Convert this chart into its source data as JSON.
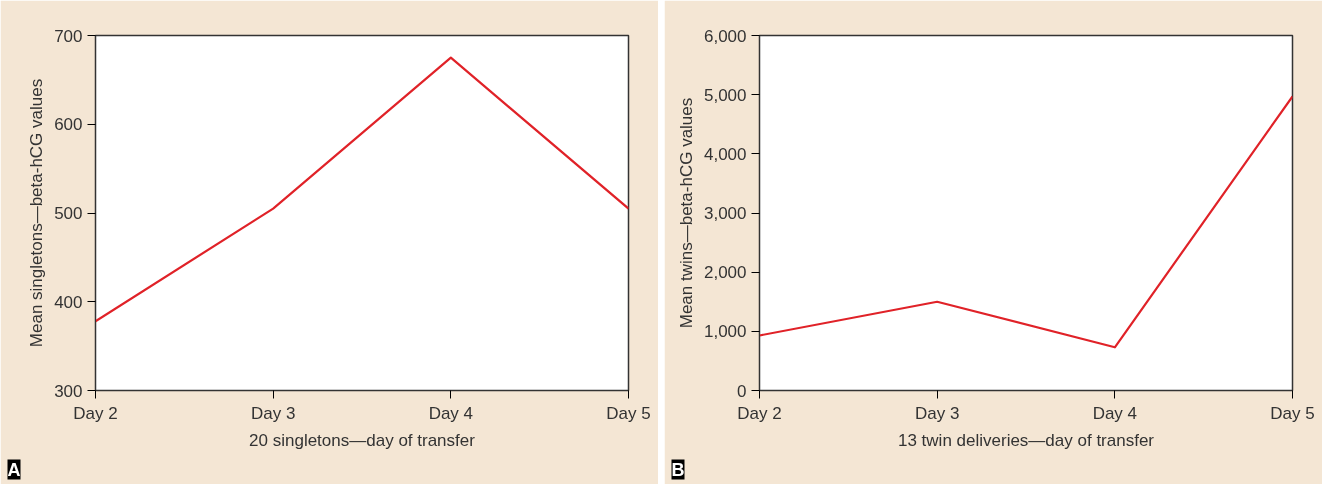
{
  "chart_data": [
    {
      "type": "line",
      "xlabel": "20 singletons—day of transfer",
      "ylabel": "Mean singletons—beta-hCG values",
      "categories": [
        "Day 2",
        "Day 3",
        "Day 4",
        "Day 5"
      ],
      "series": [
        {
          "color": "#e02228",
          "values": [
            378,
            505,
            675,
            505
          ]
        }
      ],
      "ylim": [
        300,
        700
      ],
      "yticks": [
        300,
        400,
        500,
        600,
        700
      ],
      "annotations": [
        "A"
      ]
    },
    {
      "type": "line",
      "xlabel": "13 twin deliveries—day of transfer",
      "ylabel": "Mean twins—beta-hCG values",
      "categories": [
        "Day 2",
        "Day 3",
        "Day 4",
        "Day 5"
      ],
      "series": [
        {
          "color": "#e02228",
          "values": [
            930,
            1500,
            730,
            4970
          ]
        }
      ],
      "ylim": [
        0,
        6000
      ],
      "yticks": [
        {
          "value": 0,
          "label": "0"
        },
        {
          "value": 1000,
          "label": "1,000"
        },
        {
          "value": 2000,
          "label": "2,000"
        },
        {
          "value": 3000,
          "label": "3,000"
        },
        {
          "value": 4000,
          "label": "4,000"
        },
        {
          "value": 5000,
          "label": "5,000"
        },
        {
          "value": 6000,
          "label": "6,000"
        }
      ],
      "annotations": [
        "B"
      ]
    }
  ]
}
